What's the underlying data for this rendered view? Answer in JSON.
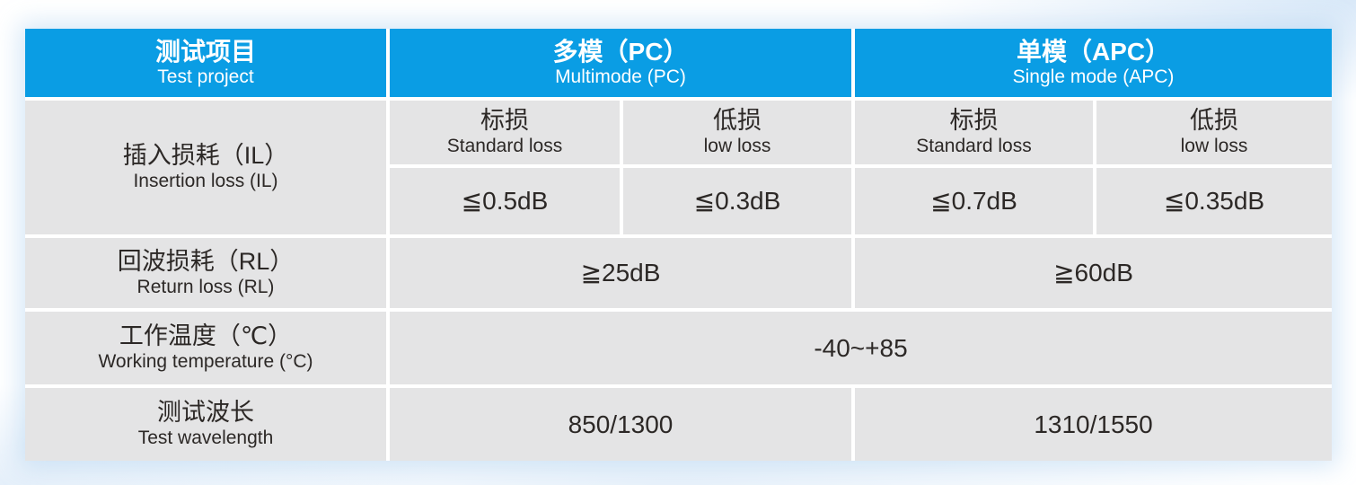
{
  "colors": {
    "header_bg": "#0a9de4",
    "header_text": "#ffffff",
    "cell_bg": "#e4e4e5",
    "text": "#2c2826",
    "divider": "#ffffff"
  },
  "table": {
    "header": [
      {
        "zh": "测试项目",
        "en": "Test project"
      },
      {
        "zh": "多模（PC）",
        "en": "Multimode (PC)"
      },
      {
        "zh": "单模（APC）",
        "en": "Single mode (APC)"
      }
    ],
    "insertion_loss": {
      "label_zh": "插入损耗（IL）",
      "label_en": "Insertion loss (IL)",
      "subheaders": [
        {
          "zh": "标损",
          "en": "Standard loss"
        },
        {
          "zh": "低损",
          "en": "low loss"
        },
        {
          "zh": "标损",
          "en": "Standard loss"
        },
        {
          "zh": "低损",
          "en": "low loss"
        }
      ],
      "values": [
        "≦0.5dB",
        "≦0.3dB",
        "≦0.7dB",
        "≦0.35dB"
      ]
    },
    "return_loss": {
      "label_zh": "回波损耗（RL）",
      "label_en": "Return loss (RL)",
      "values": [
        "≧25dB",
        "≧60dB"
      ]
    },
    "working_temperature": {
      "label_zh": "工作温度（℃）",
      "label_en": "Working temperature (°C)",
      "value": "-40~+85"
    },
    "test_wavelength": {
      "label_zh": "测试波长",
      "label_en": "Test wavelength",
      "values": [
        "850/1300",
        "1310/1550"
      ]
    }
  }
}
